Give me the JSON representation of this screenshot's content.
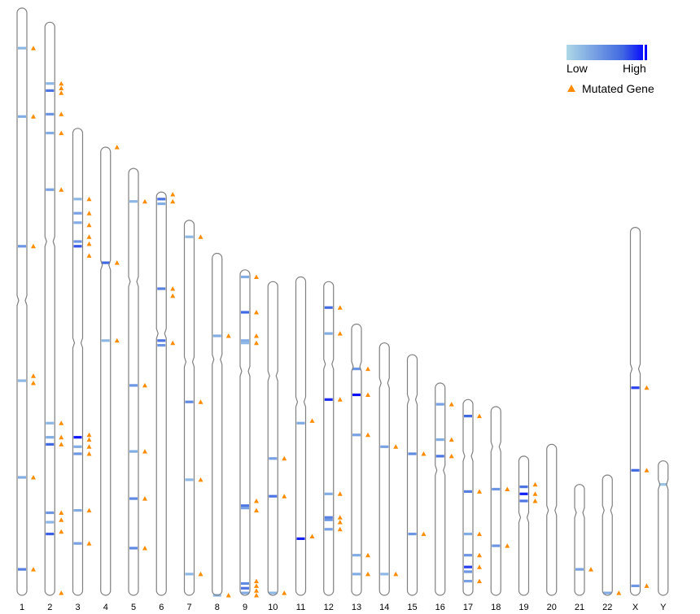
{
  "legend": {
    "low_label": "Low",
    "high_label": "High",
    "mutated_label": "Mutated Gene",
    "gradient": [
      "#add8e6",
      "#4169e1",
      "#0000ff"
    ],
    "marker_color": "#ff8c00"
  },
  "chart_data": {
    "type": "ideogram",
    "chromosomes": [
      {
        "name": "1",
        "length": 249,
        "centromere": 124,
        "bands": [
          {
            "pos": 17,
            "level": 0.15
          },
          {
            "pos": 46,
            "level": 0.2
          },
          {
            "pos": 101,
            "level": 0.3
          },
          {
            "pos": 158,
            "level": 0.15
          },
          {
            "pos": 199,
            "level": 0.2
          },
          {
            "pos": 238,
            "level": 0.4
          }
        ],
        "mutations": [
          17,
          46,
          101,
          156,
          159,
          199,
          238
        ]
      },
      {
        "name": "2",
        "length": 243,
        "centromere": 93,
        "bands": [
          {
            "pos": 26,
            "level": 0.15
          },
          {
            "pos": 29,
            "level": 0.45
          },
          {
            "pos": 39,
            "level": 0.3
          },
          {
            "pos": 47,
            "level": 0.2
          },
          {
            "pos": 71,
            "level": 0.25
          },
          {
            "pos": 170,
            "level": 0.15
          },
          {
            "pos": 176,
            "level": 0.2
          },
          {
            "pos": 179,
            "level": 0.5
          },
          {
            "pos": 208,
            "level": 0.3
          },
          {
            "pos": 212,
            "level": 0.15
          },
          {
            "pos": 217,
            "level": 0.55
          }
        ],
        "mutations": [
          26,
          28,
          30,
          39,
          47,
          71,
          170,
          176,
          179,
          208,
          211,
          216,
          242
        ]
      },
      {
        "name": "3",
        "length": 198,
        "centromere": 91,
        "bands": [
          {
            "pos": 30,
            "level": 0.15
          },
          {
            "pos": 36,
            "level": 0.25
          },
          {
            "pos": 40,
            "level": 0.2
          },
          {
            "pos": 48,
            "level": 0.3
          },
          {
            "pos": 50,
            "level": 0.6
          },
          {
            "pos": 131,
            "level": 0.9
          },
          {
            "pos": 135,
            "level": 0.2
          },
          {
            "pos": 138,
            "level": 0.3
          },
          {
            "pos": 162,
            "level": 0.2
          },
          {
            "pos": 176,
            "level": 0.25
          }
        ],
        "mutations": [
          30,
          36,
          41,
          46,
          49,
          54,
          130,
          132,
          135,
          138,
          162,
          176
        ]
      },
      {
        "name": "4",
        "length": 190,
        "centromere": 50,
        "bands": [
          {
            "pos": 49,
            "level": 0.5
          },
          {
            "pos": 82,
            "level": 0.15
          }
        ],
        "mutations": [
          0,
          49,
          82
        ]
      },
      {
        "name": "5",
        "length": 181,
        "centromere": 48,
        "bands": [
          {
            "pos": 14,
            "level": 0.15
          },
          {
            "pos": 92,
            "level": 0.3
          },
          {
            "pos": 120,
            "level": 0.2
          },
          {
            "pos": 140,
            "level": 0.35
          },
          {
            "pos": 161,
            "level": 0.35
          }
        ],
        "mutations": [
          14,
          92,
          120,
          140,
          161
        ]
      },
      {
        "name": "6",
        "length": 171,
        "centromere": 60,
        "bands": [
          {
            "pos": 3,
            "level": 0.45
          },
          {
            "pos": 5,
            "level": 0.2
          },
          {
            "pos": 41,
            "level": 0.4
          },
          {
            "pos": 63,
            "level": 0.45
          },
          {
            "pos": 65,
            "level": 0.3
          }
        ],
        "mutations": [
          1,
          4,
          41,
          44,
          64
        ]
      },
      {
        "name": "7",
        "length": 159,
        "centromere": 60,
        "bands": [
          {
            "pos": 7,
            "level": 0.15
          },
          {
            "pos": 77,
            "level": 0.35
          },
          {
            "pos": 110,
            "level": 0.15
          },
          {
            "pos": 150,
            "level": 0.15
          }
        ],
        "mutations": [
          7,
          77,
          110,
          150
        ]
      },
      {
        "name": "8",
        "length": 145,
        "centromere": 45,
        "bands": [
          {
            "pos": 35,
            "level": 0.2
          },
          {
            "pos": 145,
            "level": 0.15
          }
        ],
        "mutations": [
          35,
          145
        ]
      },
      {
        "name": "9",
        "length": 138,
        "centromere": 43,
        "bands": [
          {
            "pos": 3,
            "level": 0.2
          },
          {
            "pos": 18,
            "level": 0.5
          },
          {
            "pos": 30,
            "level": 0.2
          },
          {
            "pos": 31,
            "level": 0.15
          },
          {
            "pos": 100,
            "level": 0.45
          },
          {
            "pos": 101,
            "level": 0.25
          },
          {
            "pos": 133,
            "level": 0.35
          },
          {
            "pos": 135,
            "level": 0.45
          },
          {
            "pos": 137,
            "level": 0.2
          }
        ],
        "mutations": [
          3,
          18,
          28,
          31,
          98,
          102,
          132,
          134,
          136,
          138
        ]
      },
      {
        "name": "10",
        "length": 133,
        "centromere": 40,
        "bands": [
          {
            "pos": 75,
            "level": 0.25
          },
          {
            "pos": 91,
            "level": 0.45
          },
          {
            "pos": 132,
            "level": 0.15
          }
        ],
        "mutations": [
          75,
          91,
          132
        ]
      },
      {
        "name": "11",
        "length": 135,
        "centromere": 53,
        "bands": [
          {
            "pos": 62,
            "level": 0.2
          },
          {
            "pos": 111,
            "level": 0.85
          }
        ],
        "mutations": [
          61,
          110
        ]
      },
      {
        "name": "12",
        "length": 133,
        "centromere": 35,
        "bands": [
          {
            "pos": 11,
            "level": 0.5
          },
          {
            "pos": 22,
            "level": 0.2
          },
          {
            "pos": 50,
            "level": 0.8
          },
          {
            "pos": 90,
            "level": 0.2
          },
          {
            "pos": 100,
            "level": 0.4
          },
          {
            "pos": 101,
            "level": 0.3
          },
          {
            "pos": 105,
            "level": 0.25
          }
        ],
        "mutations": [
          11,
          22,
          50,
          90,
          100,
          102,
          105
        ]
      },
      {
        "name": "13",
        "length": 115,
        "centromere": 18,
        "bands": [
          {
            "pos": 19,
            "level": 0.3
          },
          {
            "pos": 30,
            "level": 0.95
          },
          {
            "pos": 47,
            "level": 0.25
          },
          {
            "pos": 98,
            "level": 0.2
          },
          {
            "pos": 106,
            "level": 0.2
          }
        ],
        "mutations": [
          19,
          30,
          47,
          98,
          106
        ]
      },
      {
        "name": "14",
        "length": 107,
        "centromere": 17,
        "bands": [
          {
            "pos": 44,
            "level": 0.25
          },
          {
            "pos": 98,
            "level": 0.15
          }
        ],
        "mutations": [
          44,
          98
        ]
      },
      {
        "name": "15",
        "length": 102,
        "centromere": 19,
        "bands": [
          {
            "pos": 42,
            "level": 0.35
          },
          {
            "pos": 76,
            "level": 0.3
          }
        ],
        "mutations": [
          42,
          76
        ]
      },
      {
        "name": "16",
        "length": 90,
        "centromere": 37,
        "bands": [
          {
            "pos": 9,
            "level": 0.25
          },
          {
            "pos": 24,
            "level": 0.2
          },
          {
            "pos": 31,
            "level": 0.45
          }
        ],
        "mutations": [
          9,
          24,
          31
        ]
      },
      {
        "name": "17",
        "length": 83,
        "centromere": 24,
        "bands": [
          {
            "pos": 7,
            "level": 0.5
          },
          {
            "pos": 39,
            "level": 0.4
          },
          {
            "pos": 57,
            "level": 0.2
          },
          {
            "pos": 66,
            "level": 0.3
          },
          {
            "pos": 71,
            "level": 0.7
          },
          {
            "pos": 73,
            "level": 0.3
          },
          {
            "pos": 77,
            "level": 0.25
          }
        ],
        "mutations": [
          7,
          39,
          57,
          66,
          71,
          77
        ]
      },
      {
        "name": "18",
        "length": 80,
        "centromere": 17,
        "bands": [
          {
            "pos": 35,
            "level": 0.3
          },
          {
            "pos": 59,
            "level": 0.3
          }
        ],
        "mutations": [
          35,
          59
        ]
      },
      {
        "name": "19",
        "length": 59,
        "centromere": 26,
        "bands": [
          {
            "pos": 13,
            "level": 0.45
          },
          {
            "pos": 16,
            "level": 0.85
          },
          {
            "pos": 19,
            "level": 0.45
          }
        ],
        "mutations": [
          12,
          16,
          19
        ]
      },
      {
        "name": "20",
        "length": 64,
        "centromere": 28,
        "bands": [],
        "mutations": []
      },
      {
        "name": "21",
        "length": 47,
        "centromere": 12,
        "bands": [
          {
            "pos": 36,
            "level": 0.25
          }
        ],
        "mutations": [
          36
        ]
      },
      {
        "name": "22",
        "length": 51,
        "centromere": 15,
        "bands": [
          {
            "pos": 50,
            "level": 0.2
          }
        ],
        "mutations": [
          50
        ]
      },
      {
        "name": "X",
        "length": 156,
        "centromere": 60,
        "bands": [
          {
            "pos": 68,
            "level": 0.7
          },
          {
            "pos": 103,
            "level": 0.5
          },
          {
            "pos": 152,
            "level": 0.3
          }
        ],
        "mutations": [
          68,
          103,
          152
        ]
      },
      {
        "name": "Y",
        "length": 57,
        "centromere": 10,
        "bands": [
          {
            "pos": 10,
            "level": 0.1
          }
        ],
        "mutations": []
      }
    ]
  }
}
